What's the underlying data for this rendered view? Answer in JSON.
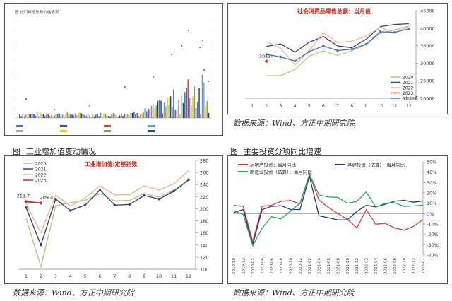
{
  "source_note": "数据来源：Wind、方正中期研究院",
  "captions": {
    "bottom_left_label": "图",
    "bottom_left_title": "工业增加值变动情况",
    "bottom_right_label": "图",
    "bottom_right_title": "主要投资分项同比增速"
  },
  "colors": {
    "y2020": "#b5c987",
    "y2021": "#3f3f7a",
    "y2022": "#f2b98a",
    "y2023": "#d42a1f",
    "avg5": "#4472c4",
    "real_estate": "#e53935",
    "infrastructure": "#1f3a93",
    "manufacturing": "#2eaa4a"
  },
  "chart_data": [
    {
      "id": "top-left",
      "type": "bar",
      "title": "图  进口粮投放和价格情况",
      "note": "thumbnail chart, values illegible",
      "series_count": 8
    },
    {
      "id": "retail",
      "type": "line",
      "title": "社会消费品零售总额：当月值",
      "categories": [
        "1",
        "2",
        "3",
        "4",
        "5",
        "6",
        "7",
        "8",
        "9",
        "10",
        "11",
        "12"
      ],
      "ylim": [
        20000,
        45000
      ],
      "yticks": [
        20000,
        25000,
        30000,
        35000,
        40000,
        45000
      ],
      "annotation": "30534",
      "series": [
        {
          "name": "2020",
          "color": "#b5c987",
          "values": [
            null,
            26450,
            26450,
            28180,
            31970,
            33530,
            32200,
            33570,
            35300,
            38580,
            39510,
            40570
          ]
        },
        {
          "name": "2021",
          "color": "#3f3f7a",
          "values": [
            null,
            34780,
            35480,
            33150,
            35950,
            37590,
            34930,
            34400,
            36830,
            40450,
            41040,
            41270
          ]
        },
        {
          "name": "2022",
          "color": "#f2b98a",
          "values": [
            null,
            36130,
            34230,
            29480,
            33550,
            38740,
            35870,
            36260,
            37750,
            40270,
            38610,
            40540
          ]
        },
        {
          "name": "2023",
          "color": "#d42a1f",
          "values": [
            null,
            30534,
            null,
            null,
            null,
            null,
            null,
            null,
            null,
            null,
            null,
            null
          ]
        },
        {
          "name": "5年均值",
          "color": "#4472c4",
          "values": [
            null,
            32500,
            31800,
            30600,
            33300,
            34900,
            33600,
            34000,
            35400,
            39000,
            38800,
            39800
          ]
        }
      ]
    },
    {
      "id": "industry",
      "type": "line",
      "title": "工业增加值:定基指数",
      "categories": [
        "1",
        "2",
        "3",
        "4",
        "5",
        "6",
        "7",
        "8",
        "9",
        "10",
        "11",
        "12"
      ],
      "ylim": [
        100,
        280
      ],
      "yticks": [
        100,
        120,
        140,
        160,
        180,
        200,
        220,
        240,
        260,
        280
      ],
      "annotations": [
        "211.7",
        "209.4"
      ],
      "series": [
        {
          "name": "2020",
          "color": "#b5c987",
          "values": [
            184,
            104,
            205,
            210,
            214,
            225,
            213,
            214,
            225,
            219,
            231,
            247
          ]
        },
        {
          "name": "2021",
          "color": "#3f3f7a",
          "values": [
            202,
            140,
            216,
            197,
            206,
            231,
            206,
            207,
            222,
            216,
            229,
            248
          ]
        },
        {
          "name": "2022",
          "color": "#f2b98a",
          "values": [
            209,
            160,
            223,
            204,
            218,
            238,
            223,
            223,
            238,
            231,
            241,
            263
          ]
        },
        {
          "name": "2023",
          "color": "#d42a1f",
          "values": [
            211.7,
            209.4,
            null,
            null,
            null,
            null,
            null,
            null,
            null,
            null,
            null,
            null
          ]
        }
      ]
    },
    {
      "id": "investment",
      "type": "line",
      "title": "",
      "categories": [
        "2019-10",
        "2019-12",
        "2020-02",
        "2020-04",
        "2020-06",
        "2020-08",
        "2020-10",
        "2020-12",
        "2021-02",
        "2021-04",
        "2021-06",
        "2021-08",
        "2021-10",
        "2021-12",
        "2022-02",
        "2022-04",
        "2022-06",
        "2022-08",
        "2022-10",
        "2022-12",
        "2023-02"
      ],
      "ylim": [
        -40,
        50
      ],
      "yticks": [
        -40,
        -30,
        -20,
        -10,
        0,
        10,
        20,
        30,
        40,
        50
      ],
      "yticks_label_suffix": "%",
      "series": [
        {
          "name": "房地产投资：当月同比",
          "color": "#e53935",
          "values": [
            8,
            7,
            -27,
            7,
            8,
            11.8,
            12.7,
            9.3,
            38,
            13,
            6,
            0,
            -5.4,
            -13.9,
            3.7,
            -10.1,
            -9.4,
            -13.8,
            -16,
            -12.2,
            -5.7
          ]
        },
        {
          "name": "基建投资（估算）：当月同比",
          "color": "#1f3a93",
          "values": [
            1,
            4,
            -30,
            4,
            7,
            7.6,
            4,
            4,
            36,
            -2,
            -4,
            -6,
            -6,
            2,
            8.1,
            6.5,
            9,
            12,
            12.8,
            11,
            12.2
          ]
        },
        {
          "name": "制造业投资（估算）：当月同比",
          "color": "#2eaa4a",
          "values": [
            3,
            -1,
            -31,
            -14,
            -3,
            -5,
            2.4,
            10,
            38,
            18,
            16,
            15.7,
            10,
            11.7,
            20.9,
            6.4,
            9.9,
            10.6,
            6.9,
            7.4,
            8.1
          ]
        }
      ]
    }
  ]
}
